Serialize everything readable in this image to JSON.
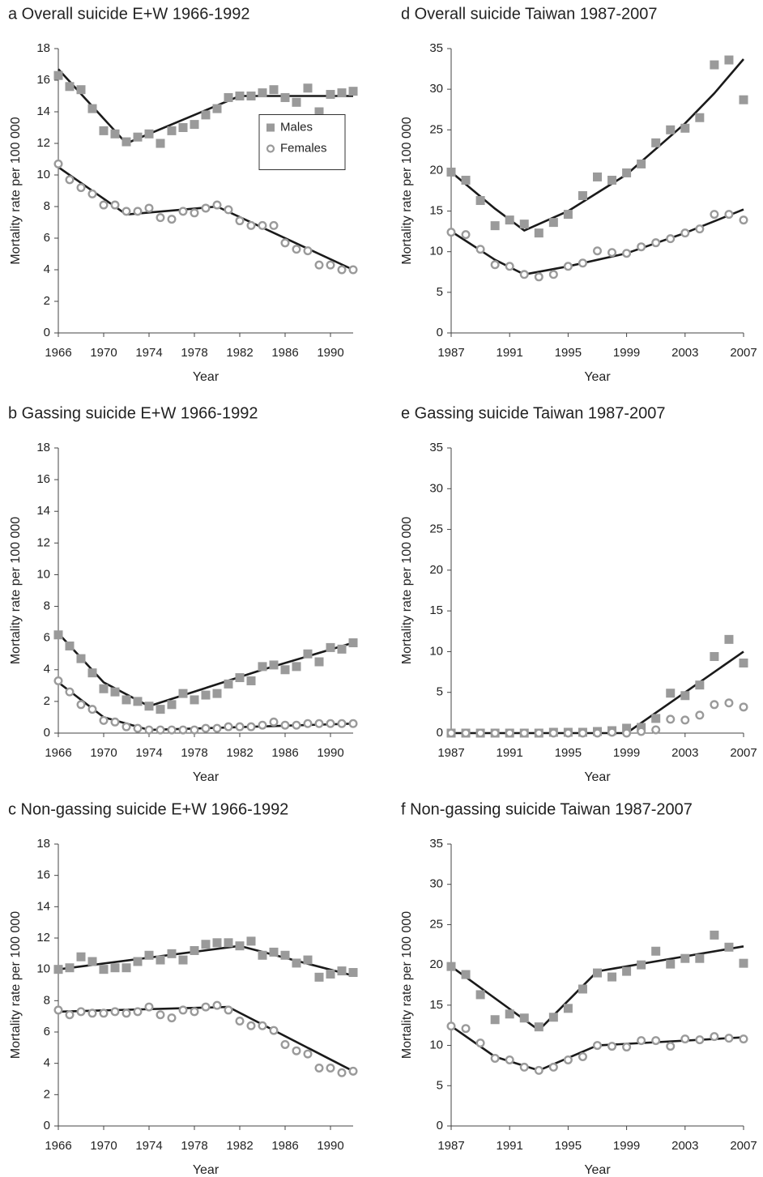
{
  "chart_data": [
    {
      "type": "scatter",
      "title": "a Overall suicide E+W 1966-1992",
      "x_label": "Year",
      "y_label": "Mortality rate per 100 000",
      "xlim": [
        1966,
        1992
      ],
      "xticks": [
        1966,
        1970,
        1974,
        1978,
        1982,
        1986,
        1990
      ],
      "ylim": [
        0,
        18
      ],
      "yticks": [
        0,
        2,
        4,
        6,
        8,
        10,
        12,
        14,
        16,
        18
      ],
      "legend": "center right",
      "x": [
        1966,
        1967,
        1968,
        1969,
        1970,
        1971,
        1972,
        1973,
        1974,
        1975,
        1976,
        1977,
        1978,
        1979,
        1980,
        1981,
        1982,
        1983,
        1984,
        1985,
        1986,
        1987,
        1988,
        1989,
        1990,
        1991,
        1992
      ],
      "series": [
        {
          "name": "Males",
          "marker": "square",
          "color": "#9a9a9a",
          "values": [
            16.3,
            15.6,
            15.4,
            14.2,
            12.8,
            12.6,
            12.1,
            12.4,
            12.6,
            12.0,
            12.8,
            13.0,
            13.2,
            13.8,
            14.2,
            14.9,
            15.0,
            15.0,
            15.2,
            15.4,
            14.9,
            14.6,
            15.5,
            14.0,
            15.1,
            15.2,
            15.3
          ],
          "fit": {
            "x": [
              1966,
              1972,
              1982,
              1992
            ],
            "values": [
              16.7,
              12.0,
              15.0,
              15.0
            ]
          }
        },
        {
          "name": "Females",
          "marker": "open-circle",
          "color": "#9a9a9a",
          "values": [
            10.7,
            9.7,
            9.2,
            8.8,
            8.1,
            8.1,
            7.7,
            7.7,
            7.9,
            7.3,
            7.2,
            7.7,
            7.6,
            7.9,
            8.1,
            7.8,
            7.1,
            6.8,
            6.8,
            6.8,
            5.7,
            5.3,
            5.2,
            4.3,
            4.3,
            4.0,
            4.0
          ],
          "fit": {
            "x": [
              1966,
              1972,
              1980,
              1992
            ],
            "values": [
              10.5,
              7.5,
              8.0,
              4.0
            ]
          }
        }
      ]
    },
    {
      "type": "scatter",
      "title": "b Gassing suicide E+W 1966-1992",
      "x_label": "Year",
      "y_label": "Mortality rate per 100 000",
      "xlim": [
        1966,
        1992
      ],
      "xticks": [
        1966,
        1970,
        1974,
        1978,
        1982,
        1986,
        1990
      ],
      "ylim": [
        0,
        18
      ],
      "yticks": [
        0,
        2,
        4,
        6,
        8,
        10,
        12,
        14,
        16,
        18
      ],
      "x": [
        1966,
        1967,
        1968,
        1969,
        1970,
        1971,
        1972,
        1973,
        1974,
        1975,
        1976,
        1977,
        1978,
        1979,
        1980,
        1981,
        1982,
        1983,
        1984,
        1985,
        1986,
        1987,
        1988,
        1989,
        1990,
        1991,
        1992
      ],
      "series": [
        {
          "marker": "square",
          "color": "#9a9a9a",
          "values": [
            6.2,
            5.5,
            4.7,
            3.8,
            2.8,
            2.6,
            2.1,
            2.0,
            1.7,
            1.5,
            1.8,
            2.5,
            2.1,
            2.4,
            2.5,
            3.1,
            3.5,
            3.3,
            4.2,
            4.3,
            4.0,
            4.2,
            5.0,
            4.5,
            5.4,
            5.3,
            5.7
          ],
          "fit": {
            "x": [
              1966,
              1970,
              1974,
              1984,
              1992
            ],
            "values": [
              6.3,
              3.2,
              1.7,
              4.0,
              5.7
            ]
          }
        },
        {
          "marker": "open-circle",
          "color": "#9a9a9a",
          "values": [
            3.3,
            2.6,
            1.8,
            1.5,
            0.8,
            0.7,
            0.4,
            0.3,
            0.2,
            0.2,
            0.2,
            0.2,
            0.2,
            0.3,
            0.3,
            0.4,
            0.4,
            0.4,
            0.5,
            0.7,
            0.5,
            0.5,
            0.6,
            0.6,
            0.6,
            0.6,
            0.6
          ],
          "fit": {
            "x": [
              1966,
              1970,
              1974,
              1992
            ],
            "values": [
              3.2,
              1.0,
              0.2,
              0.6
            ]
          }
        }
      ]
    },
    {
      "type": "scatter",
      "title": "c Non-gassing suicide E+W 1966-1992",
      "x_label": "Year",
      "y_label": "Mortality rate per 100 000",
      "xlim": [
        1966,
        1992
      ],
      "xticks": [
        1966,
        1970,
        1974,
        1978,
        1982,
        1986,
        1990
      ],
      "ylim": [
        0,
        18
      ],
      "yticks": [
        0,
        2,
        4,
        6,
        8,
        10,
        12,
        14,
        16,
        18
      ],
      "x": [
        1966,
        1967,
        1968,
        1969,
        1970,
        1971,
        1972,
        1973,
        1974,
        1975,
        1976,
        1977,
        1978,
        1979,
        1980,
        1981,
        1982,
        1983,
        1984,
        1985,
        1986,
        1987,
        1988,
        1989,
        1990,
        1991,
        1992
      ],
      "series": [
        {
          "marker": "square",
          "color": "#9a9a9a",
          "values": [
            10.0,
            10.1,
            10.8,
            10.5,
            10.0,
            10.1,
            10.1,
            10.5,
            10.9,
            10.6,
            11.0,
            10.6,
            11.2,
            11.6,
            11.7,
            11.7,
            11.5,
            11.8,
            10.9,
            11.1,
            10.9,
            10.4,
            10.6,
            9.5,
            9.7,
            9.9,
            9.8
          ],
          "fit": {
            "x": [
              1966,
              1982,
              1992
            ],
            "values": [
              10.0,
              11.5,
              9.6
            ]
          }
        },
        {
          "marker": "open-circle",
          "color": "#9a9a9a",
          "values": [
            7.4,
            7.1,
            7.3,
            7.2,
            7.2,
            7.3,
            7.2,
            7.3,
            7.6,
            7.1,
            6.9,
            7.4,
            7.3,
            7.6,
            7.7,
            7.4,
            6.7,
            6.4,
            6.4,
            6.1,
            5.2,
            4.8,
            4.6,
            3.7,
            3.7,
            3.4,
            3.5
          ],
          "fit": {
            "x": [
              1966,
              1981,
              1992
            ],
            "values": [
              7.3,
              7.6,
              3.5
            ]
          }
        }
      ]
    },
    {
      "type": "scatter",
      "title": "d Overall suicide Taiwan 1987-2007",
      "x_label": "Year",
      "y_label": "Mortality rate per 100 000",
      "xlim": [
        1987,
        2007
      ],
      "xticks": [
        1987,
        1991,
        1995,
        1999,
        2003,
        2007
      ],
      "ylim": [
        0,
        35
      ],
      "yticks": [
        0,
        5,
        10,
        15,
        20,
        25,
        30,
        35
      ],
      "x": [
        1987,
        1988,
        1989,
        1990,
        1991,
        1992,
        1993,
        1994,
        1995,
        1996,
        1997,
        1998,
        1999,
        2000,
        2001,
        2002,
        2003,
        2004,
        2005,
        2006,
        2007
      ],
      "series": [
        {
          "marker": "square",
          "color": "#9a9a9a",
          "values": [
            19.8,
            18.8,
            16.3,
            13.2,
            13.9,
            13.4,
            12.3,
            13.6,
            14.6,
            16.9,
            19.2,
            18.8,
            19.7,
            20.8,
            23.4,
            25.0,
            25.2,
            26.5,
            33.0,
            33.6,
            28.7
          ],
          "fit": {
            "x": [
              1987,
              1990,
              1992,
              1995,
              1999,
              2003,
              2005,
              2007
            ],
            "values": [
              19.8,
              15.3,
              12.6,
              15.0,
              19.5,
              25.8,
              29.5,
              33.7
            ]
          }
        },
        {
          "marker": "open-circle",
          "color": "#9a9a9a",
          "values": [
            12.4,
            12.1,
            10.3,
            8.4,
            8.2,
            7.2,
            6.9,
            7.2,
            8.2,
            8.6,
            10.1,
            9.9,
            9.8,
            10.6,
            11.1,
            11.6,
            12.3,
            12.8,
            14.6,
            14.6,
            13.9
          ],
          "fit": {
            "x": [
              1987,
              1990,
              1992,
              1995,
              1999,
              2003,
              2007
            ],
            "values": [
              12.5,
              9.0,
              7.2,
              8.2,
              9.8,
              12.3,
              15.2
            ]
          }
        }
      ]
    },
    {
      "type": "scatter",
      "title": "e Gassing suicide Taiwan 1987-2007",
      "x_label": "Year",
      "y_label": "Mortality rate per 100 000",
      "xlim": [
        1987,
        2007
      ],
      "xticks": [
        1987,
        1991,
        1995,
        1999,
        2003,
        2007
      ],
      "ylim": [
        0,
        35
      ],
      "yticks": [
        0,
        5,
        10,
        15,
        20,
        25,
        30,
        35
      ],
      "x": [
        1987,
        1988,
        1989,
        1990,
        1991,
        1992,
        1993,
        1994,
        1995,
        1996,
        1997,
        1998,
        1999,
        2000,
        2001,
        2002,
        2003,
        2004,
        2005,
        2006,
        2007
      ],
      "series": [
        {
          "marker": "square",
          "color": "#9a9a9a",
          "values": [
            0,
            0,
            0,
            0,
            0,
            0,
            0,
            0.1,
            0.1,
            0.1,
            0.2,
            0.3,
            0.6,
            0.7,
            1.8,
            4.9,
            4.6,
            5.9,
            9.4,
            11.5,
            8.6
          ],
          "fit": {
            "x": [
              1987,
              1999,
              2007
            ],
            "values": [
              0,
              0,
              10.0
            ]
          }
        },
        {
          "marker": "open-circle",
          "color": "#9a9a9a",
          "values": [
            0,
            0,
            0,
            0,
            0,
            0,
            0,
            0,
            0,
            0,
            0,
            0.1,
            0,
            0.2,
            0.4,
            1.7,
            1.6,
            2.2,
            3.5,
            3.7,
            3.2
          ]
        }
      ]
    },
    {
      "type": "scatter",
      "title": "f Non-gassing suicide Taiwan 1987-2007",
      "x_label": "Year",
      "y_label": "Mortality rate per 100 000",
      "xlim": [
        1987,
        2007
      ],
      "xticks": [
        1987,
        1991,
        1995,
        1999,
        2003,
        2007
      ],
      "ylim": [
        0,
        35
      ],
      "yticks": [
        0,
        5,
        10,
        15,
        20,
        25,
        30,
        35
      ],
      "x": [
        1987,
        1988,
        1989,
        1990,
        1991,
        1992,
        1993,
        1994,
        1995,
        1996,
        1997,
        1998,
        1999,
        2000,
        2001,
        2002,
        2003,
        2004,
        2005,
        2006,
        2007
      ],
      "series": [
        {
          "marker": "square",
          "color": "#9a9a9a",
          "values": [
            19.8,
            18.8,
            16.3,
            13.2,
            13.9,
            13.4,
            12.3,
            13.5,
            14.6,
            17.0,
            19.0,
            18.5,
            19.2,
            20.0,
            21.7,
            20.1,
            20.8,
            20.8,
            23.7,
            22.2,
            20.2
          ],
          "fit": {
            "x": [
              1987,
              1993,
              1997,
              2007
            ],
            "values": [
              19.8,
              11.9,
              19.2,
              22.3
            ]
          }
        },
        {
          "marker": "open-circle",
          "color": "#9a9a9a",
          "values": [
            12.4,
            12.1,
            10.3,
            8.4,
            8.2,
            7.3,
            6.9,
            7.3,
            8.2,
            8.6,
            10.0,
            9.9,
            9.8,
            10.6,
            10.6,
            9.9,
            10.8,
            10.7,
            11.1,
            10.9,
            10.8
          ],
          "fit": {
            "x": [
              1987,
              1990,
              1993,
              1997,
              2007
            ],
            "values": [
              12.4,
              8.6,
              6.9,
              10.0,
              11.0
            ]
          }
        }
      ]
    }
  ]
}
